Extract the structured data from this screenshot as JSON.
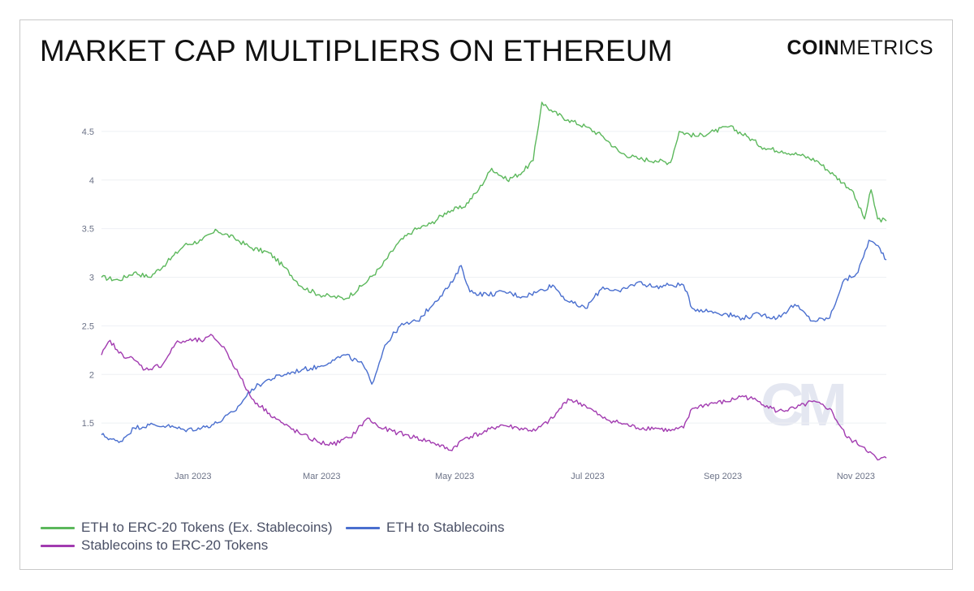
{
  "header": {
    "title": "MARKET CAP MULTIPLIERS ON ETHEREUM",
    "brand_bold": "COIN",
    "brand_light": "METRICS",
    "watermark": "CM"
  },
  "chart_data": {
    "type": "line",
    "title": "MARKET CAP MULTIPLIERS ON ETHEREUM",
    "xlabel": "",
    "ylabel": "",
    "ylim": [
      1.05,
      4.85
    ],
    "x_range": [
      "2022-11-20",
      "2023-11-15"
    ],
    "y_ticks": [
      1.5,
      2,
      2.5,
      3,
      3.5,
      4,
      4.5
    ],
    "y_tick_labels": [
      "1.5",
      "2",
      "2.5",
      "3",
      "3.5",
      "4",
      "4.5"
    ],
    "x_ticks": [
      "2023-01-01",
      "2023-03-01",
      "2023-05-01",
      "2023-07-01",
      "2023-09-01",
      "2023-11-01"
    ],
    "x_tick_labels": [
      "Jan 2023",
      "Mar 2023",
      "May 2023",
      "Jul 2023",
      "Sep 2023",
      "Nov 2023"
    ],
    "grid": "horizontal",
    "legend_position": "bottom-left",
    "series": [
      {
        "name": "ETH to ERC-20 Tokens (Ex. Stablecoins)",
        "color": "#5cb85c",
        "points": [
          [
            "2022-11-20",
            3.0
          ],
          [
            "2022-11-28",
            2.97
          ],
          [
            "2022-12-05",
            3.05
          ],
          [
            "2022-12-12",
            3.0
          ],
          [
            "2022-12-20",
            3.15
          ],
          [
            "2022-12-28",
            3.33
          ],
          [
            "2023-01-05",
            3.38
          ],
          [
            "2023-01-12",
            3.48
          ],
          [
            "2023-01-20",
            3.4
          ],
          [
            "2023-01-28",
            3.3
          ],
          [
            "2023-02-05",
            3.25
          ],
          [
            "2023-02-12",
            3.1
          ],
          [
            "2023-02-20",
            2.9
          ],
          [
            "2023-02-28",
            2.82
          ],
          [
            "2023-03-06",
            2.8
          ],
          [
            "2023-03-12",
            2.78
          ],
          [
            "2023-03-20",
            2.92
          ],
          [
            "2023-03-28",
            3.1
          ],
          [
            "2023-04-05",
            3.35
          ],
          [
            "2023-04-12",
            3.48
          ],
          [
            "2023-04-20",
            3.55
          ],
          [
            "2023-04-28",
            3.68
          ],
          [
            "2023-05-05",
            3.72
          ],
          [
            "2023-05-12",
            3.9
          ],
          [
            "2023-05-18",
            4.12
          ],
          [
            "2023-05-25",
            4.0
          ],
          [
            "2023-06-01",
            4.08
          ],
          [
            "2023-06-06",
            4.2
          ],
          [
            "2023-06-10",
            4.8
          ],
          [
            "2023-06-15",
            4.7
          ],
          [
            "2023-06-22",
            4.62
          ],
          [
            "2023-06-30",
            4.55
          ],
          [
            "2023-07-08",
            4.45
          ],
          [
            "2023-07-16",
            4.28
          ],
          [
            "2023-07-24",
            4.22
          ],
          [
            "2023-08-01",
            4.2
          ],
          [
            "2023-08-08",
            4.18
          ],
          [
            "2023-08-12",
            4.5
          ],
          [
            "2023-08-20",
            4.45
          ],
          [
            "2023-08-28",
            4.5
          ],
          [
            "2023-09-04",
            4.55
          ],
          [
            "2023-09-12",
            4.45
          ],
          [
            "2023-09-20",
            4.33
          ],
          [
            "2023-09-28",
            4.3
          ],
          [
            "2023-10-06",
            4.26
          ],
          [
            "2023-10-14",
            4.2
          ],
          [
            "2023-10-22",
            4.05
          ],
          [
            "2023-10-30",
            3.9
          ],
          [
            "2023-11-05",
            3.6
          ],
          [
            "2023-11-08",
            3.9
          ],
          [
            "2023-11-11",
            3.6
          ],
          [
            "2023-11-15",
            3.58
          ]
        ]
      },
      {
        "name": "ETH to Stablecoins",
        "color": "#4a6fcf",
        "points": [
          [
            "2022-11-20",
            1.38
          ],
          [
            "2022-11-28",
            1.3
          ],
          [
            "2022-12-05",
            1.45
          ],
          [
            "2022-12-12",
            1.48
          ],
          [
            "2022-12-20",
            1.47
          ],
          [
            "2022-12-28",
            1.43
          ],
          [
            "2023-01-05",
            1.45
          ],
          [
            "2023-01-12",
            1.5
          ],
          [
            "2023-01-20",
            1.62
          ],
          [
            "2023-01-28",
            1.85
          ],
          [
            "2023-02-05",
            1.95
          ],
          [
            "2023-02-12",
            2.0
          ],
          [
            "2023-02-20",
            2.05
          ],
          [
            "2023-02-28",
            2.08
          ],
          [
            "2023-03-06",
            2.15
          ],
          [
            "2023-03-12",
            2.2
          ],
          [
            "2023-03-20",
            2.1
          ],
          [
            "2023-03-24",
            1.9
          ],
          [
            "2023-03-30",
            2.3
          ],
          [
            "2023-04-06",
            2.5
          ],
          [
            "2023-04-14",
            2.55
          ],
          [
            "2023-04-22",
            2.75
          ],
          [
            "2023-04-30",
            2.95
          ],
          [
            "2023-05-04",
            3.12
          ],
          [
            "2023-05-08",
            2.85
          ],
          [
            "2023-05-16",
            2.82
          ],
          [
            "2023-05-24",
            2.85
          ],
          [
            "2023-06-01",
            2.8
          ],
          [
            "2023-06-08",
            2.85
          ],
          [
            "2023-06-15",
            2.92
          ],
          [
            "2023-06-22",
            2.75
          ],
          [
            "2023-06-30",
            2.68
          ],
          [
            "2023-07-08",
            2.9
          ],
          [
            "2023-07-16",
            2.85
          ],
          [
            "2023-07-24",
            2.95
          ],
          [
            "2023-08-01",
            2.9
          ],
          [
            "2023-08-08",
            2.92
          ],
          [
            "2023-08-14",
            2.92
          ],
          [
            "2023-08-18",
            2.68
          ],
          [
            "2023-08-26",
            2.65
          ],
          [
            "2023-09-03",
            2.62
          ],
          [
            "2023-09-10",
            2.58
          ],
          [
            "2023-09-18",
            2.62
          ],
          [
            "2023-09-26",
            2.58
          ],
          [
            "2023-10-04",
            2.72
          ],
          [
            "2023-10-12",
            2.55
          ],
          [
            "2023-10-20",
            2.58
          ],
          [
            "2023-10-26",
            2.95
          ],
          [
            "2023-11-02",
            3.05
          ],
          [
            "2023-11-07",
            3.38
          ],
          [
            "2023-11-12",
            3.3
          ],
          [
            "2023-11-15",
            3.18
          ]
        ]
      },
      {
        "name": "Stablecoins to ERC-20 Tokens",
        "color": "#a23bb0",
        "points": [
          [
            "2022-11-20",
            2.2
          ],
          [
            "2022-11-24",
            2.35
          ],
          [
            "2022-11-28",
            2.22
          ],
          [
            "2022-12-05",
            2.15
          ],
          [
            "2022-12-10",
            2.05
          ],
          [
            "2022-12-18",
            2.1
          ],
          [
            "2022-12-24",
            2.32
          ],
          [
            "2022-12-30",
            2.35
          ],
          [
            "2023-01-06",
            2.35
          ],
          [
            "2023-01-10",
            2.4
          ],
          [
            "2023-01-16",
            2.25
          ],
          [
            "2023-01-22",
            2.0
          ],
          [
            "2023-01-28",
            1.75
          ],
          [
            "2023-02-05",
            1.6
          ],
          [
            "2023-02-12",
            1.48
          ],
          [
            "2023-02-20",
            1.38
          ],
          [
            "2023-02-28",
            1.3
          ],
          [
            "2023-03-06",
            1.28
          ],
          [
            "2023-03-14",
            1.35
          ],
          [
            "2023-03-22",
            1.55
          ],
          [
            "2023-03-28",
            1.45
          ],
          [
            "2023-04-05",
            1.4
          ],
          [
            "2023-04-13",
            1.35
          ],
          [
            "2023-04-21",
            1.3
          ],
          [
            "2023-04-29",
            1.22
          ],
          [
            "2023-05-06",
            1.35
          ],
          [
            "2023-05-14",
            1.4
          ],
          [
            "2023-05-22",
            1.48
          ],
          [
            "2023-05-30",
            1.45
          ],
          [
            "2023-06-07",
            1.42
          ],
          [
            "2023-06-15",
            1.55
          ],
          [
            "2023-06-22",
            1.75
          ],
          [
            "2023-06-30",
            1.68
          ],
          [
            "2023-07-08",
            1.55
          ],
          [
            "2023-07-16",
            1.5
          ],
          [
            "2023-07-24",
            1.45
          ],
          [
            "2023-08-01",
            1.45
          ],
          [
            "2023-08-08",
            1.42
          ],
          [
            "2023-08-14",
            1.45
          ],
          [
            "2023-08-18",
            1.65
          ],
          [
            "2023-08-26",
            1.7
          ],
          [
            "2023-09-03",
            1.72
          ],
          [
            "2023-09-10",
            1.78
          ],
          [
            "2023-09-18",
            1.72
          ],
          [
            "2023-09-26",
            1.62
          ],
          [
            "2023-10-04",
            1.65
          ],
          [
            "2023-10-12",
            1.72
          ],
          [
            "2023-10-20",
            1.65
          ],
          [
            "2023-10-28",
            1.35
          ],
          [
            "2023-11-05",
            1.25
          ],
          [
            "2023-11-11",
            1.12
          ],
          [
            "2023-11-15",
            1.14
          ]
        ]
      }
    ]
  }
}
